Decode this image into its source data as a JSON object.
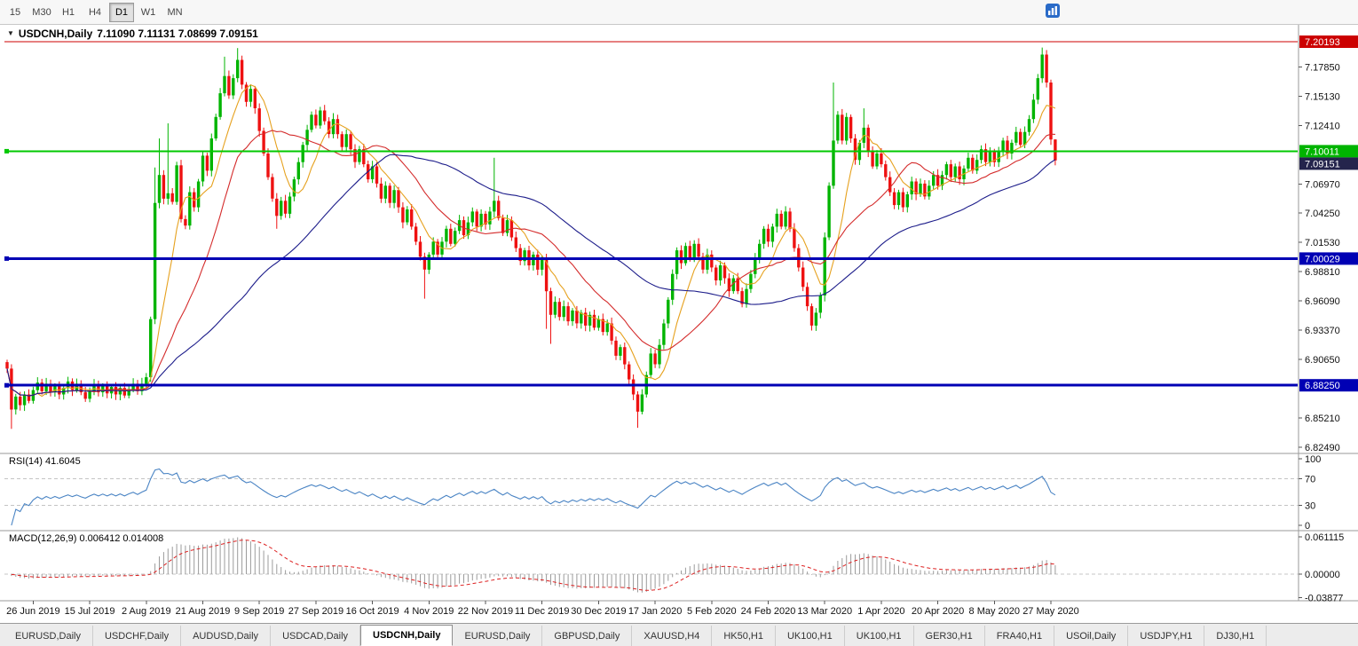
{
  "toolbar": {
    "timeframes": [
      {
        "label": "15",
        "active": false
      },
      {
        "label": "M30",
        "active": false
      },
      {
        "label": "H1",
        "active": false
      },
      {
        "label": "H4",
        "active": false
      },
      {
        "label": "D1",
        "active": true
      },
      {
        "label": "W1",
        "active": false
      },
      {
        "label": "MN",
        "active": false
      }
    ]
  },
  "chart_title": {
    "collapse": "▼",
    "symbol": "USDCNH,Daily",
    "values": "7.11090 7.11131 7.08699 7.09151"
  },
  "indicators": {
    "rsi_label": "RSI(14) 41.6045",
    "macd_label": "MACD(12,26,9) 0.006412 0.014008"
  },
  "colors": {
    "candle_up": "#00b400",
    "candle_down": "#ee1111",
    "ma_fast": "#e6a11e",
    "ma_mid": "#d42b2b",
    "ma_slow": "#1c1c8a",
    "rsi": "#4a84c4",
    "macd_hist": "#9b9b9b",
    "macd_signal": "#dd2020"
  },
  "price_axis": {
    "ticks": [
      "7.17850",
      "7.15130",
      "7.12410",
      "7.06970",
      "7.04250",
      "7.01530",
      "6.98810",
      "6.96090",
      "6.93370",
      "6.90650",
      "6.85210",
      "6.82490"
    ],
    "badges": [
      {
        "text": "7.20193",
        "price": 7.20193,
        "color": "#cc0000"
      },
      {
        "text": "7.10011",
        "price": 7.10011,
        "color": "#00b400"
      },
      {
        "text": "7.09151",
        "price": 7.09151,
        "color": "#24244c"
      },
      {
        "text": "7.00029",
        "price": 7.00029,
        "color": "#0000b4"
      },
      {
        "text": "6.88250",
        "price": 6.8825,
        "color": "#0000b4"
      }
    ]
  },
  "hlines": [
    {
      "price": 7.20193,
      "color": "#cc0000",
      "width": 1.4,
      "handle": false
    },
    {
      "price": 7.10011,
      "color": "#00c800",
      "width": 2,
      "handle": true
    },
    {
      "price": 7.00029,
      "color": "#0000b4",
      "width": 3,
      "handle": true
    },
    {
      "price": 6.8825,
      "color": "#0000b4",
      "width": 3,
      "handle": true
    }
  ],
  "rsi_axis": [
    {
      "text": "100",
      "value": 100,
      "dashed": false
    },
    {
      "text": "70",
      "value": 70,
      "dashed": true
    },
    {
      "text": "30",
      "value": 30,
      "dashed": true
    },
    {
      "text": "0",
      "value": 0,
      "dashed": false
    }
  ],
  "macd_axis": [
    {
      "text": "0.061115",
      "value": 0.061115,
      "dashed": false
    },
    {
      "text": "0.00000",
      "value": 0,
      "dashed": true
    },
    {
      "text": "-0.03877",
      "value": -0.03877,
      "dashed": false
    }
  ],
  "x_axis": {
    "labels": [
      "26 Jun 2019",
      "15 Jul 2019",
      "2 Aug 2019",
      "21 Aug 2019",
      "9 Sep 2019",
      "27 Sep 2019",
      "16 Oct 2019",
      "4 Nov 2019",
      "22 Nov 2019",
      "11 Dec 2019",
      "30 Dec 2019",
      "17 Jan 2020",
      "5 Feb 2020",
      "24 Feb 2020",
      "13 Mar 2020",
      "1 Apr 2020",
      "20 Apr 2020",
      "8 May 2020",
      "27 May 2020"
    ]
  },
  "tabs": [
    {
      "label": "EURUSD,Daily",
      "active": false
    },
    {
      "label": "USDCHF,Daily",
      "active": false
    },
    {
      "label": "AUDUSD,Daily",
      "active": false
    },
    {
      "label": "USDCAD,Daily",
      "active": false
    },
    {
      "label": "USDCNH,Daily",
      "active": true
    },
    {
      "label": "EURUSD,Daily",
      "active": false
    },
    {
      "label": "GBPUSD,Daily",
      "active": false
    },
    {
      "label": "XAUUSD,H4",
      "active": false
    },
    {
      "label": "HK50,H1",
      "active": false
    },
    {
      "label": "UK100,H1",
      "active": false
    },
    {
      "label": "UK100,H1",
      "active": false
    },
    {
      "label": "GER30,H1",
      "active": false
    },
    {
      "label": "FRA40,H1",
      "active": false
    },
    {
      "label": "USOil,Daily",
      "active": false
    },
    {
      "label": "USDJPY,H1",
      "active": false
    },
    {
      "label": "DJ30,H1",
      "active": false
    }
  ],
  "chart_data": {
    "type": "candlestick",
    "symbol": "USDCNH",
    "period": "Daily",
    "current_bar": {
      "open": 7.1109,
      "high": 7.11131,
      "low": 7.08699,
      "close": 7.09151
    },
    "rsi_period": 14,
    "macd_params": [
      12,
      26,
      9
    ],
    "date_label_start_index": 6,
    "date_label_step": 13,
    "closes": [
      6.898,
      6.86,
      6.872,
      6.864,
      6.874,
      6.868,
      6.878,
      6.885,
      6.877,
      6.884,
      6.876,
      6.882,
      6.874,
      6.88,
      6.886,
      6.878,
      6.884,
      6.876,
      6.87,
      6.877,
      6.883,
      6.876,
      6.882,
      6.875,
      6.881,
      6.874,
      6.88,
      6.873,
      6.879,
      6.884,
      6.877,
      6.884,
      6.89,
      6.944,
      7.052,
      7.078,
      7.056,
      7.061,
      7.053,
      7.087,
      7.037,
      7.031,
      7.062,
      7.048,
      7.072,
      7.096,
      7.082,
      7.112,
      7.132,
      7.154,
      7.17,
      7.152,
      7.168,
      7.185,
      7.162,
      7.146,
      7.158,
      7.14,
      7.119,
      7.098,
      7.076,
      7.056,
      7.04,
      7.054,
      7.042,
      7.058,
      7.074,
      7.09,
      7.106,
      7.12,
      7.134,
      7.124,
      7.138,
      7.128,
      7.116,
      7.13,
      7.116,
      7.104,
      7.116,
      7.102,
      7.09,
      7.102,
      7.088,
      7.074,
      7.086,
      7.07,
      7.056,
      7.068,
      7.052,
      7.064,
      7.048,
      7.034,
      7.046,
      7.03,
      7.016,
      7.002,
      6.99,
      7.004,
      7.016,
      7.004,
      7.016,
      7.028,
      7.014,
      7.026,
      7.036,
      7.022,
      7.034,
      7.044,
      7.03,
      7.042,
      7.032,
      7.044,
      7.054,
      7.038,
      7.024,
      7.036,
      7.02,
      7.01,
      6.998,
      7.008,
      6.994,
      7.004,
      6.99,
      7.0,
      6.97,
      6.948,
      6.96,
      6.946,
      6.956,
      6.942,
      6.952,
      6.94,
      6.95,
      6.938,
      6.948,
      6.936,
      6.944,
      6.932,
      6.94,
      6.924,
      6.91,
      6.918,
      6.902,
      6.888,
      6.874,
      6.858,
      6.874,
      6.892,
      6.912,
      6.902,
      6.92,
      6.94,
      6.962,
      6.986,
      7.008,
      6.996,
      7.012,
      7.0,
      7.014,
      7.002,
      6.99,
      7.004,
      6.992,
      6.98,
      6.994,
      6.982,
      6.97,
      6.982,
      6.97,
      6.958,
      6.972,
      6.986,
      7.0,
      7.014,
      7.028,
      7.016,
      7.03,
      7.042,
      7.03,
      7.044,
      7.028,
      7.01,
      6.992,
      6.974,
      6.956,
      6.938,
      6.95,
      6.966,
      7.02,
      7.068,
      7.11,
      7.134,
      7.11,
      7.132,
      7.112,
      7.092,
      7.108,
      7.122,
      7.1,
      7.086,
      7.098,
      7.088,
      7.076,
      7.062,
      7.05,
      7.062,
      7.048,
      7.06,
      7.072,
      7.06,
      7.07,
      7.058,
      7.068,
      7.078,
      7.068,
      7.078,
      7.088,
      7.076,
      7.086,
      7.074,
      7.084,
      7.094,
      7.082,
      7.092,
      7.102,
      7.09,
      7.1,
      7.09,
      7.1,
      7.11,
      7.098,
      7.108,
      7.118,
      7.106,
      7.118,
      7.13,
      7.148,
      7.168,
      7.19,
      7.164,
      7.111,
      7.0915
    ],
    "wick_overrides": {
      "1": {
        "l": 6.842
      },
      "34": {
        "h": 7.085
      },
      "35": {
        "h": 7.112
      },
      "37": {
        "h": 7.126
      },
      "50": {
        "h": 7.188
      },
      "53": {
        "h": 7.196
      },
      "62": {
        "l": 7.028
      },
      "96": {
        "l": 6.963
      },
      "112": {
        "h": 7.094
      },
      "124": {
        "l": 6.935
      },
      "125": {
        "l": 6.921
      },
      "145": {
        "l": 6.843
      },
      "190": {
        "h": 7.164
      },
      "197": {
        "h": 7.14
      },
      "238": {
        "h": 7.1965
      },
      "241": {
        "h": 7.11131,
        "l": 7.08699
      }
    }
  }
}
